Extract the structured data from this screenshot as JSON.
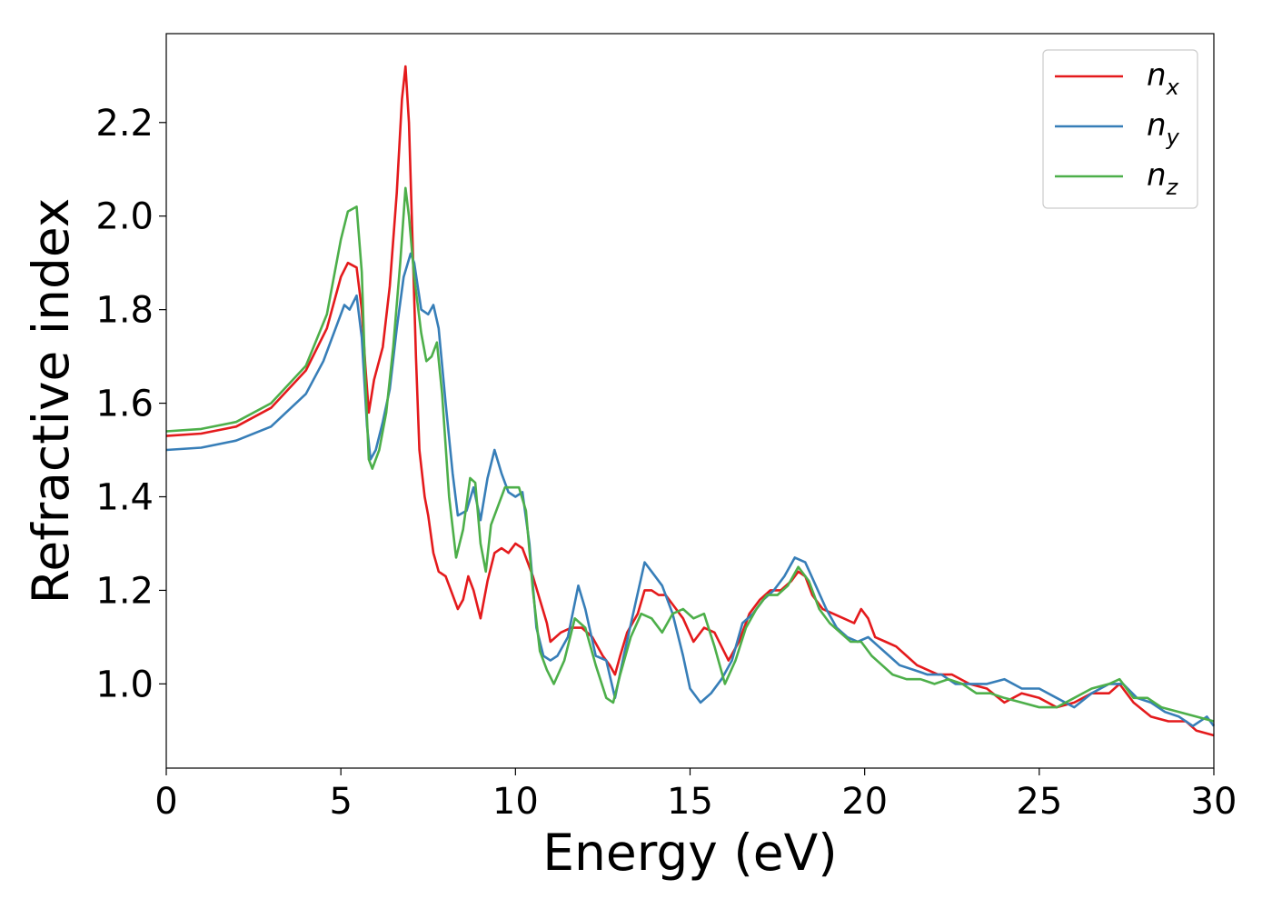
{
  "chart_data": {
    "type": "line",
    "xlabel": "Energy (eV)",
    "ylabel": "Refractive index",
    "xlim": [
      0,
      30
    ],
    "ylim": [
      0.82,
      2.39
    ],
    "xticks": [
      0,
      5,
      10,
      15,
      20,
      25,
      30
    ],
    "xtick_labels": [
      "0",
      "5",
      "10",
      "15",
      "20",
      "25",
      "30"
    ],
    "yticks": [
      1.0,
      1.2,
      1.4,
      1.6,
      1.8,
      2.0,
      2.2
    ],
    "ytick_labels": [
      "1.0",
      "1.2",
      "1.4",
      "1.6",
      "1.8",
      "2.0",
      "2.2"
    ],
    "grid": false,
    "legend_position": "top-right",
    "series": [
      {
        "name": "n_x",
        "label_main": "n",
        "label_sub": "x",
        "color": "#e41a1c",
        "points": [
          [
            0,
            1.53
          ],
          [
            1,
            1.535
          ],
          [
            2,
            1.55
          ],
          [
            3,
            1.59
          ],
          [
            4,
            1.67
          ],
          [
            4.6,
            1.76
          ],
          [
            5.0,
            1.87
          ],
          [
            5.2,
            1.9
          ],
          [
            5.45,
            1.89
          ],
          [
            5.6,
            1.8
          ],
          [
            5.7,
            1.68
          ],
          [
            5.8,
            1.58
          ],
          [
            5.95,
            1.65
          ],
          [
            6.2,
            1.72
          ],
          [
            6.4,
            1.85
          ],
          [
            6.6,
            2.05
          ],
          [
            6.75,
            2.25
          ],
          [
            6.85,
            2.32
          ],
          [
            6.95,
            2.2
          ],
          [
            7.05,
            1.95
          ],
          [
            7.15,
            1.7
          ],
          [
            7.25,
            1.5
          ],
          [
            7.4,
            1.4
          ],
          [
            7.5,
            1.36
          ],
          [
            7.65,
            1.28
          ],
          [
            7.8,
            1.24
          ],
          [
            8.0,
            1.23
          ],
          [
            8.2,
            1.19
          ],
          [
            8.35,
            1.16
          ],
          [
            8.5,
            1.18
          ],
          [
            8.65,
            1.23
          ],
          [
            8.8,
            1.2
          ],
          [
            9.0,
            1.14
          ],
          [
            9.2,
            1.22
          ],
          [
            9.4,
            1.28
          ],
          [
            9.6,
            1.29
          ],
          [
            9.8,
            1.28
          ],
          [
            10.0,
            1.3
          ],
          [
            10.2,
            1.29
          ],
          [
            10.5,
            1.23
          ],
          [
            10.7,
            1.18
          ],
          [
            10.9,
            1.13
          ],
          [
            11.0,
            1.09
          ],
          [
            11.3,
            1.11
          ],
          [
            11.6,
            1.12
          ],
          [
            11.9,
            1.12
          ],
          [
            12.2,
            1.1
          ],
          [
            12.5,
            1.06
          ],
          [
            12.7,
            1.04
          ],
          [
            12.85,
            1.02
          ],
          [
            13.0,
            1.06
          ],
          [
            13.2,
            1.11
          ],
          [
            13.5,
            1.15
          ],
          [
            13.7,
            1.2
          ],
          [
            13.9,
            1.2
          ],
          [
            14.1,
            1.19
          ],
          [
            14.3,
            1.19
          ],
          [
            14.5,
            1.17
          ],
          [
            14.8,
            1.14
          ],
          [
            15.1,
            1.09
          ],
          [
            15.4,
            1.12
          ],
          [
            15.7,
            1.11
          ],
          [
            15.9,
            1.08
          ],
          [
            16.1,
            1.05
          ],
          [
            16.4,
            1.09
          ],
          [
            16.7,
            1.15
          ],
          [
            17.0,
            1.18
          ],
          [
            17.3,
            1.2
          ],
          [
            17.6,
            1.2
          ],
          [
            17.9,
            1.22
          ],
          [
            18.1,
            1.24
          ],
          [
            18.3,
            1.23
          ],
          [
            18.5,
            1.19
          ],
          [
            18.8,
            1.16
          ],
          [
            19.1,
            1.15
          ],
          [
            19.4,
            1.14
          ],
          [
            19.7,
            1.13
          ],
          [
            19.9,
            1.16
          ],
          [
            20.1,
            1.14
          ],
          [
            20.3,
            1.1
          ],
          [
            20.6,
            1.09
          ],
          [
            20.9,
            1.08
          ],
          [
            21.2,
            1.06
          ],
          [
            21.5,
            1.04
          ],
          [
            21.8,
            1.03
          ],
          [
            22.1,
            1.02
          ],
          [
            22.5,
            1.02
          ],
          [
            23.0,
            1.0
          ],
          [
            23.5,
            0.99
          ],
          [
            24.0,
            0.96
          ],
          [
            24.5,
            0.98
          ],
          [
            25.0,
            0.97
          ],
          [
            25.5,
            0.95
          ],
          [
            26.0,
            0.96
          ],
          [
            26.5,
            0.98
          ],
          [
            27.0,
            0.98
          ],
          [
            27.3,
            1.0
          ],
          [
            27.7,
            0.96
          ],
          [
            28.2,
            0.93
          ],
          [
            28.7,
            0.92
          ],
          [
            29.2,
            0.92
          ],
          [
            29.5,
            0.9
          ],
          [
            30,
            0.89
          ]
        ]
      },
      {
        "name": "n_y",
        "label_main": "n",
        "label_sub": "y",
        "color": "#377eb8",
        "points": [
          [
            0,
            1.5
          ],
          [
            1,
            1.505
          ],
          [
            2,
            1.52
          ],
          [
            3,
            1.55
          ],
          [
            4,
            1.62
          ],
          [
            4.5,
            1.69
          ],
          [
            4.9,
            1.77
          ],
          [
            5.1,
            1.81
          ],
          [
            5.25,
            1.8
          ],
          [
            5.45,
            1.83
          ],
          [
            5.6,
            1.74
          ],
          [
            5.75,
            1.55
          ],
          [
            5.85,
            1.48
          ],
          [
            6.0,
            1.5
          ],
          [
            6.2,
            1.56
          ],
          [
            6.4,
            1.63
          ],
          [
            6.6,
            1.76
          ],
          [
            6.8,
            1.87
          ],
          [
            7.0,
            1.92
          ],
          [
            7.1,
            1.9
          ],
          [
            7.3,
            1.8
          ],
          [
            7.5,
            1.79
          ],
          [
            7.65,
            1.81
          ],
          [
            7.8,
            1.76
          ],
          [
            8.0,
            1.6
          ],
          [
            8.2,
            1.45
          ],
          [
            8.35,
            1.36
          ],
          [
            8.6,
            1.37
          ],
          [
            8.8,
            1.42
          ],
          [
            9.0,
            1.35
          ],
          [
            9.2,
            1.44
          ],
          [
            9.4,
            1.5
          ],
          [
            9.6,
            1.45
          ],
          [
            9.8,
            1.41
          ],
          [
            10.0,
            1.4
          ],
          [
            10.2,
            1.41
          ],
          [
            10.4,
            1.3
          ],
          [
            10.6,
            1.12
          ],
          [
            10.8,
            1.06
          ],
          [
            11.0,
            1.05
          ],
          [
            11.2,
            1.06
          ],
          [
            11.5,
            1.1
          ],
          [
            11.8,
            1.21
          ],
          [
            12.0,
            1.16
          ],
          [
            12.3,
            1.06
          ],
          [
            12.6,
            1.05
          ],
          [
            12.85,
            0.97
          ],
          [
            13.1,
            1.06
          ],
          [
            13.4,
            1.16
          ],
          [
            13.7,
            1.26
          ],
          [
            13.9,
            1.24
          ],
          [
            14.2,
            1.21
          ],
          [
            14.5,
            1.15
          ],
          [
            14.8,
            1.06
          ],
          [
            15.0,
            0.99
          ],
          [
            15.3,
            0.96
          ],
          [
            15.6,
            0.98
          ],
          [
            15.9,
            1.01
          ],
          [
            16.2,
            1.05
          ],
          [
            16.5,
            1.13
          ],
          [
            16.8,
            1.15
          ],
          [
            17.1,
            1.18
          ],
          [
            17.4,
            1.2
          ],
          [
            17.7,
            1.23
          ],
          [
            18.0,
            1.27
          ],
          [
            18.3,
            1.26
          ],
          [
            18.6,
            1.21
          ],
          [
            18.9,
            1.16
          ],
          [
            19.2,
            1.12
          ],
          [
            19.5,
            1.1
          ],
          [
            19.8,
            1.09
          ],
          [
            20.1,
            1.1
          ],
          [
            20.4,
            1.08
          ],
          [
            20.7,
            1.06
          ],
          [
            21.0,
            1.04
          ],
          [
            21.4,
            1.03
          ],
          [
            21.8,
            1.02
          ],
          [
            22.2,
            1.02
          ],
          [
            22.6,
            1.0
          ],
          [
            23.0,
            1.0
          ],
          [
            23.5,
            1.0
          ],
          [
            24.0,
            1.01
          ],
          [
            24.5,
            0.99
          ],
          [
            25.0,
            0.99
          ],
          [
            25.5,
            0.97
          ],
          [
            26.0,
            0.95
          ],
          [
            26.5,
            0.98
          ],
          [
            27.0,
            1.0
          ],
          [
            27.4,
            1.0
          ],
          [
            27.8,
            0.97
          ],
          [
            28.2,
            0.96
          ],
          [
            28.6,
            0.94
          ],
          [
            29.0,
            0.93
          ],
          [
            29.4,
            0.91
          ],
          [
            29.8,
            0.93
          ],
          [
            30,
            0.91
          ]
        ]
      },
      {
        "name": "n_z",
        "label_main": "n",
        "label_sub": "z",
        "color": "#4daf4a",
        "points": [
          [
            0,
            1.54
          ],
          [
            1,
            1.545
          ],
          [
            2,
            1.56
          ],
          [
            3,
            1.6
          ],
          [
            4,
            1.68
          ],
          [
            4.6,
            1.79
          ],
          [
            5.0,
            1.95
          ],
          [
            5.2,
            2.01
          ],
          [
            5.45,
            2.02
          ],
          [
            5.6,
            1.88
          ],
          [
            5.7,
            1.65
          ],
          [
            5.8,
            1.48
          ],
          [
            5.9,
            1.46
          ],
          [
            6.1,
            1.5
          ],
          [
            6.3,
            1.58
          ],
          [
            6.5,
            1.72
          ],
          [
            6.7,
            1.9
          ],
          [
            6.85,
            2.06
          ],
          [
            6.95,
            2.0
          ],
          [
            7.1,
            1.87
          ],
          [
            7.3,
            1.75
          ],
          [
            7.45,
            1.69
          ],
          [
            7.6,
            1.7
          ],
          [
            7.75,
            1.73
          ],
          [
            7.9,
            1.62
          ],
          [
            8.1,
            1.4
          ],
          [
            8.3,
            1.27
          ],
          [
            8.5,
            1.33
          ],
          [
            8.7,
            1.44
          ],
          [
            8.85,
            1.43
          ],
          [
            9.0,
            1.3
          ],
          [
            9.15,
            1.24
          ],
          [
            9.3,
            1.34
          ],
          [
            9.5,
            1.38
          ],
          [
            9.7,
            1.42
          ],
          [
            9.9,
            1.42
          ],
          [
            10.1,
            1.42
          ],
          [
            10.3,
            1.37
          ],
          [
            10.5,
            1.2
          ],
          [
            10.7,
            1.07
          ],
          [
            10.9,
            1.03
          ],
          [
            11.1,
            1.0
          ],
          [
            11.4,
            1.05
          ],
          [
            11.7,
            1.14
          ],
          [
            12.0,
            1.12
          ],
          [
            12.3,
            1.04
          ],
          [
            12.6,
            0.97
          ],
          [
            12.8,
            0.96
          ],
          [
            13.0,
            1.02
          ],
          [
            13.3,
            1.1
          ],
          [
            13.6,
            1.15
          ],
          [
            13.9,
            1.14
          ],
          [
            14.2,
            1.11
          ],
          [
            14.5,
            1.15
          ],
          [
            14.8,
            1.16
          ],
          [
            15.1,
            1.14
          ],
          [
            15.4,
            1.15
          ],
          [
            15.7,
            1.08
          ],
          [
            16.0,
            1.0
          ],
          [
            16.3,
            1.05
          ],
          [
            16.6,
            1.12
          ],
          [
            16.9,
            1.16
          ],
          [
            17.2,
            1.19
          ],
          [
            17.5,
            1.19
          ],
          [
            17.8,
            1.21
          ],
          [
            18.1,
            1.25
          ],
          [
            18.4,
            1.22
          ],
          [
            18.7,
            1.16
          ],
          [
            19.0,
            1.13
          ],
          [
            19.3,
            1.11
          ],
          [
            19.6,
            1.09
          ],
          [
            19.9,
            1.09
          ],
          [
            20.2,
            1.06
          ],
          [
            20.5,
            1.04
          ],
          [
            20.8,
            1.02
          ],
          [
            21.2,
            1.01
          ],
          [
            21.6,
            1.01
          ],
          [
            22.0,
            1.0
          ],
          [
            22.4,
            1.01
          ],
          [
            22.8,
            1.0
          ],
          [
            23.2,
            0.98
          ],
          [
            23.6,
            0.98
          ],
          [
            24.0,
            0.97
          ],
          [
            24.5,
            0.96
          ],
          [
            25.0,
            0.95
          ],
          [
            25.5,
            0.95
          ],
          [
            26.0,
            0.97
          ],
          [
            26.5,
            0.99
          ],
          [
            27.0,
            1.0
          ],
          [
            27.3,
            1.01
          ],
          [
            27.7,
            0.97
          ],
          [
            28.1,
            0.97
          ],
          [
            28.5,
            0.95
          ],
          [
            29.0,
            0.94
          ],
          [
            29.5,
            0.93
          ],
          [
            30,
            0.92
          ]
        ]
      }
    ]
  }
}
